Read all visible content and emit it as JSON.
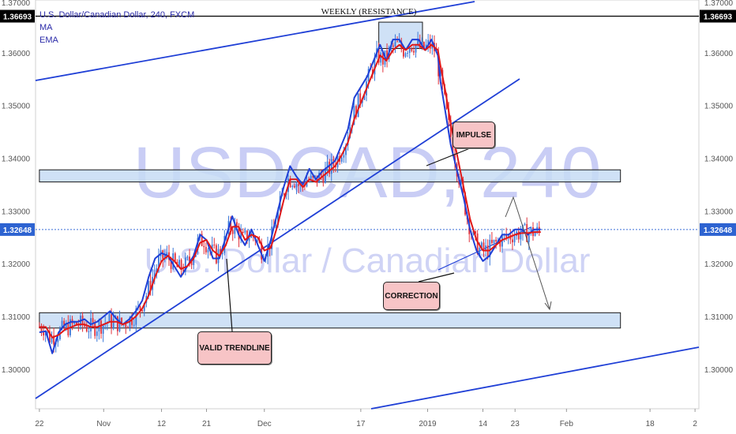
{
  "legend": {
    "symbol_line": "U.S. Dollar/Canadian Dollar, 240, FXCM",
    "ma_label": "MA",
    "ema_label": "EMA"
  },
  "watermark": {
    "main": "USDCAD, 240",
    "sub": "U.S. Dollar / Canadian Dollar"
  },
  "annotations": {
    "weekly": "WEEKLY (RESISTANCE)",
    "impulse": "IMPULSE",
    "correction": "CORRECTION",
    "valid_trendline": "VALID TRENDLINE"
  },
  "price_badge": "1.36693",
  "current_badge": "1.32648",
  "top_cut_label": "1.37000",
  "colors": {
    "ma": "#1f3fd6",
    "ema": "#e01818",
    "zone_fill": "#c7dcf5",
    "trendline": "#1f3fd6",
    "up_candle": "#3b78d8",
    "down_candle": "#e0313b"
  },
  "chart_data": {
    "type": "line",
    "ylim": [
      1.2925,
      1.37
    ],
    "y_ticks": [
      "1.30000",
      "1.31000",
      "1.32000",
      "1.33000",
      "1.34000",
      "1.35000",
      "1.36000"
    ],
    "x_ticks": [
      {
        "label": "22",
        "x": 0
      },
      {
        "label": "Nov",
        "x": 50
      },
      {
        "label": "12",
        "x": 95
      },
      {
        "label": "21",
        "x": 130
      },
      {
        "label": "Dec",
        "x": 175
      },
      {
        "label": "17",
        "x": 250
      },
      {
        "label": "2019",
        "x": 302
      },
      {
        "label": "14",
        "x": 345
      },
      {
        "label": "23",
        "x": 370
      },
      {
        "label": "Feb",
        "x": 410
      },
      {
        "label": "18",
        "x": 475
      },
      {
        "label": "2",
        "x": 510
      }
    ],
    "xlim": [
      -3,
      513
    ],
    "series": [
      {
        "name": "MA",
        "points": [
          [
            0,
            1.307
          ],
          [
            5,
            1.3072
          ],
          [
            10,
            1.303
          ],
          [
            15,
            1.307
          ],
          [
            20,
            1.3085
          ],
          [
            25,
            1.309
          ],
          [
            30,
            1.309
          ],
          [
            35,
            1.3095
          ],
          [
            40,
            1.3085
          ],
          [
            45,
            1.309
          ],
          [
            50,
            1.31
          ],
          [
            55,
            1.311
          ],
          [
            60,
            1.3095
          ],
          [
            65,
            1.3085
          ],
          [
            70,
            1.3095
          ],
          [
            75,
            1.311
          ],
          [
            80,
            1.313
          ],
          [
            85,
            1.3175
          ],
          [
            90,
            1.321
          ],
          [
            95,
            1.322
          ],
          [
            100,
            1.3215
          ],
          [
            105,
            1.3195
          ],
          [
            110,
            1.3175
          ],
          [
            115,
            1.3195
          ],
          [
            120,
            1.3215
          ],
          [
            125,
            1.3255
          ],
          [
            130,
            1.3245
          ],
          [
            135,
            1.321
          ],
          [
            140,
            1.321
          ],
          [
            145,
            1.325
          ],
          [
            150,
            1.329
          ],
          [
            155,
            1.3255
          ],
          [
            160,
            1.3235
          ],
          [
            165,
            1.3265
          ],
          [
            170,
            1.3235
          ],
          [
            175,
            1.3205
          ],
          [
            180,
            1.3245
          ],
          [
            185,
            1.3295
          ],
          [
            190,
            1.3345
          ],
          [
            195,
            1.3385
          ],
          [
            200,
            1.3365
          ],
          [
            205,
            1.335
          ],
          [
            210,
            1.338
          ],
          [
            215,
            1.336
          ],
          [
            220,
            1.3375
          ],
          [
            225,
            1.3385
          ],
          [
            230,
            1.3395
          ],
          [
            235,
            1.3425
          ],
          [
            240,
            1.3455
          ],
          [
            245,
            1.3515
          ],
          [
            250,
            1.3535
          ],
          [
            255,
            1.3555
          ],
          [
            260,
            1.3585
          ],
          [
            265,
            1.3615
          ],
          [
            270,
            1.3585
          ],
          [
            275,
            1.3625
          ],
          [
            280,
            1.3625
          ],
          [
            285,
            1.3605
          ],
          [
            290,
            1.3625
          ],
          [
            295,
            1.3625
          ],
          [
            300,
            1.3605
          ],
          [
            305,
            1.3625
          ],
          [
            310,
            1.3595
          ],
          [
            312,
            1.3545
          ],
          [
            316,
            1.3485
          ],
          [
            320,
            1.3425
          ],
          [
            325,
            1.3375
          ],
          [
            330,
            1.3325
          ],
          [
            335,
            1.3265
          ],
          [
            340,
            1.3225
          ],
          [
            345,
            1.3205
          ],
          [
            350,
            1.3215
          ],
          [
            355,
            1.3235
          ],
          [
            360,
            1.3255
          ],
          [
            365,
            1.3255
          ],
          [
            370,
            1.3265
          ],
          [
            375,
            1.3265
          ],
          [
            380,
            1.3255
          ],
          [
            385,
            1.3265
          ],
          [
            390,
            1.3265
          ]
        ]
      },
      {
        "name": "EMA",
        "points": [
          [
            0,
            1.308
          ],
          [
            5,
            1.308
          ],
          [
            10,
            1.306
          ],
          [
            15,
            1.3065
          ],
          [
            20,
            1.3075
          ],
          [
            25,
            1.308
          ],
          [
            30,
            1.3085
          ],
          [
            35,
            1.3085
          ],
          [
            40,
            1.308
          ],
          [
            45,
            1.308
          ],
          [
            50,
            1.3085
          ],
          [
            55,
            1.309
          ],
          [
            60,
            1.309
          ],
          [
            65,
            1.3085
          ],
          [
            70,
            1.309
          ],
          [
            75,
            1.31
          ],
          [
            80,
            1.3115
          ],
          [
            85,
            1.314
          ],
          [
            90,
            1.3175
          ],
          [
            95,
            1.3205
          ],
          [
            100,
            1.3215
          ],
          [
            105,
            1.3205
          ],
          [
            110,
            1.319
          ],
          [
            115,
            1.3195
          ],
          [
            120,
            1.321
          ],
          [
            125,
            1.324
          ],
          [
            130,
            1.3245
          ],
          [
            135,
            1.3225
          ],
          [
            140,
            1.3215
          ],
          [
            145,
            1.3235
          ],
          [
            150,
            1.327
          ],
          [
            155,
            1.327
          ],
          [
            160,
            1.3245
          ],
          [
            165,
            1.3255
          ],
          [
            170,
            1.325
          ],
          [
            175,
            1.3225
          ],
          [
            180,
            1.323
          ],
          [
            185,
            1.327
          ],
          [
            190,
            1.332
          ],
          [
            195,
            1.336
          ],
          [
            200,
            1.336
          ],
          [
            205,
            1.3345
          ],
          [
            210,
            1.336
          ],
          [
            215,
            1.3355
          ],
          [
            220,
            1.3365
          ],
          [
            225,
            1.3375
          ],
          [
            230,
            1.3385
          ],
          [
            235,
            1.3405
          ],
          [
            240,
            1.343
          ],
          [
            245,
            1.3475
          ],
          [
            250,
            1.3505
          ],
          [
            255,
            1.3535
          ],
          [
            260,
            1.3565
          ],
          [
            265,
            1.3595
          ],
          [
            270,
            1.3585
          ],
          [
            275,
            1.3605
          ],
          [
            280,
            1.3615
          ],
          [
            285,
            1.3605
          ],
          [
            290,
            1.3615
          ],
          [
            295,
            1.3615
          ],
          [
            300,
            1.3605
          ],
          [
            305,
            1.3615
          ],
          [
            310,
            1.3605
          ],
          [
            312,
            1.3575
          ],
          [
            316,
            1.3525
          ],
          [
            320,
            1.3465
          ],
          [
            325,
            1.3405
          ],
          [
            330,
            1.3345
          ],
          [
            335,
            1.3285
          ],
          [
            340,
            1.3245
          ],
          [
            345,
            1.3225
          ],
          [
            350,
            1.3225
          ],
          [
            355,
            1.3235
          ],
          [
            360,
            1.3245
          ],
          [
            365,
            1.325
          ],
          [
            370,
            1.3255
          ],
          [
            375,
            1.3258
          ],
          [
            380,
            1.3258
          ],
          [
            385,
            1.326
          ],
          [
            390,
            1.326
          ]
        ]
      }
    ],
    "candles_from": "EMA",
    "zones": [
      {
        "y_low": 1.3355,
        "y_high": 1.3378,
        "x_from": 0,
        "x_to": 452
      },
      {
        "y_low": 1.3078,
        "y_high": 1.3107,
        "x_from": 0,
        "x_to": 452
      },
      {
        "y_low": 1.3608,
        "y_high": 1.3658,
        "x_from": 264,
        "x_to": 298
      }
    ],
    "horizontal_lines": [
      {
        "y": 1.36693,
        "style": "solid"
      },
      {
        "y": 1.32648,
        "style": "dotted"
      }
    ]
  }
}
